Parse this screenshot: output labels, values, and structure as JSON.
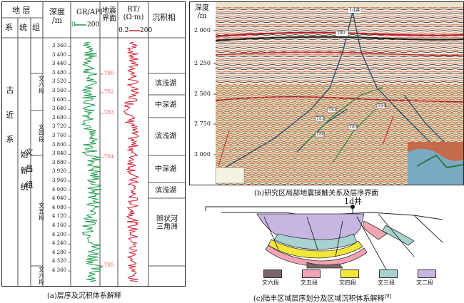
{
  "log_panel": {
    "headers": {
      "strata": "地  层",
      "system": "系",
      "series": "统",
      "group": "组",
      "member": "段",
      "depth": "深度\n/m",
      "gr": "GR/API",
      "gr_scale_left": "0",
      "gr_scale_right": "200",
      "seismic": "地震\n界面",
      "rt": "RT/\n(Ω·m)",
      "rt_scale_left": "0.2",
      "rt_scale_right": "200",
      "facies": "沉积相"
    },
    "system_name": "古\n\n\n近\n\n\n系",
    "series_name": "始\n\n新\n\n统",
    "group_name": "文\n\n昌\n\n组",
    "members": [
      {
        "label": "文\n六\n段"
      },
      {
        "label": "文\n四\n段"
      },
      {
        "label": "文\n五\n段"
      },
      {
        "label": "文\n六\n段"
      }
    ],
    "depth_ticks": [
      "3 360",
      "3 400",
      "3 440",
      "3 480",
      "3 520",
      "3 560",
      "3 600",
      "3 640",
      "3 680",
      "3 720",
      "3 760",
      "3 800",
      "3 840",
      "3 880",
      "3 920",
      "3 960",
      "4 000",
      "4 040",
      "4 080",
      "4 120",
      "4 160",
      "4 200",
      "4 240",
      "4 280",
      "4 320",
      "4 360"
    ],
    "seismic_markers": [
      "T80",
      "T82",
      "T83",
      "T84",
      "T85"
    ],
    "facies": [
      "滨浅湖",
      "中深湖",
      "滨浅湖",
      "中深湖",
      "滨浅湖",
      "辫状河\n三角洲"
    ],
    "caption": "(a)层序及沉积体系解释"
  },
  "seismic_panel": {
    "depth_label": "深度\n/m",
    "depth_ticks": [
      "2 000",
      "2 250",
      "2 500",
      "2 750",
      "3 000"
    ],
    "well_label": "1d井",
    "horizon_tags": [
      "T80",
      "T82",
      "T83",
      "T84",
      "T85",
      "T86"
    ],
    "caption": "(b)研究区局部地震接触关系及层序界面"
  },
  "section_panel": {
    "well_label": "1d井",
    "legend": [
      {
        "label": "文六段",
        "color": "#7a6466"
      },
      {
        "label": "文五段",
        "color": "#f2a3b4"
      },
      {
        "label": "文四段",
        "color": "#f2e63a"
      },
      {
        "label": "文三段",
        "color": "#a8d2cf"
      },
      {
        "label": "文二段",
        "color": "#c8b6e2"
      }
    ],
    "caption": "(c)陆丰区域层序划分及区域沉积体系解释",
    "caption_ref": "[9]"
  }
}
